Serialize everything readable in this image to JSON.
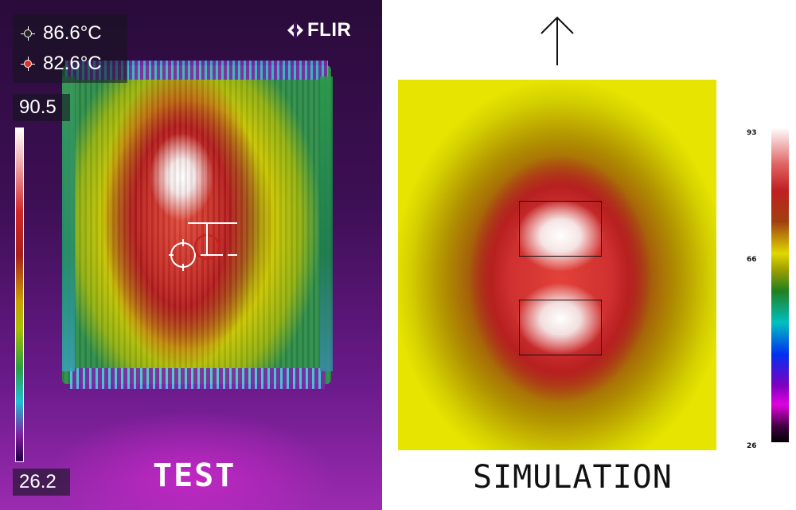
{
  "thermal_camera": {
    "brand": "FLIR",
    "spot1_reading": "86.6°C",
    "spot2_reading": "82.6°C",
    "scale_max": "90.5",
    "scale_min": "26.2",
    "label": "TEST"
  },
  "simulation": {
    "label": "SIMULATION",
    "colorbar_ticks": {
      "max": "93",
      "mid": "66",
      "min": "26"
    }
  },
  "icons": [
    "crosshair-icon",
    "crosshair-hot-icon",
    "flir-logo-icon",
    "up-arrow-icon"
  ]
}
